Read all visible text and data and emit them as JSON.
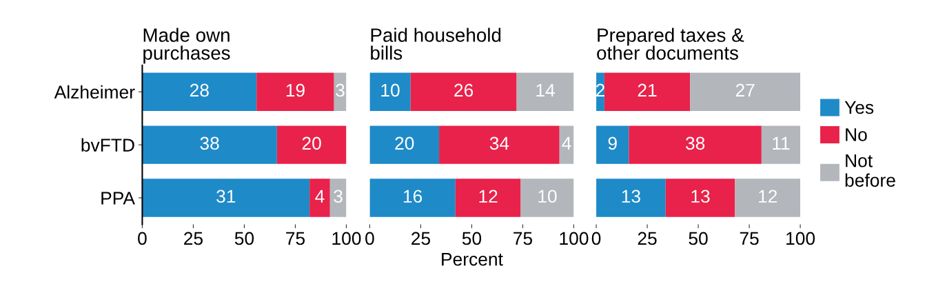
{
  "chart_data": [
    {
      "type": "bar",
      "orientation": "horizontal",
      "stacked": true,
      "title": "Made own\npurchases",
      "categories": [
        "Alzheimer",
        "bvFTD",
        "PPA"
      ],
      "xlim": [
        0,
        100
      ],
      "xticks": [
        0,
        25,
        50,
        75,
        100
      ],
      "series": [
        {
          "color": "#1f8ac8",
          "values": [
            56,
            66,
            82
          ]
        },
        {
          "color": "#e8224a",
          "values": [
            38,
            34,
            10
          ]
        },
        {
          "color": "#b3b6bb",
          "values": [
            6,
            null,
            8
          ]
        }
      ],
      "annotations": [
        "28",
        "19",
        "3",
        "38",
        "20",
        "31",
        "4",
        "3"
      ]
    },
    {
      "type": "bar",
      "orientation": "horizontal",
      "stacked": true,
      "title": "Paid household\nbills",
      "xlabel": "Percent",
      "categories": [
        null,
        null,
        null
      ],
      "xlim": [
        0,
        100
      ],
      "xticks": [
        0,
        25,
        50,
        75,
        100
      ],
      "tick_labels": "x",
      "series": [
        {
          "color": "#1f8ac8",
          "values": [
            20,
            34,
            42
          ]
        },
        {
          "color": "#e8224a",
          "values": [
            52,
            59,
            32
          ]
        },
        {
          "color": "#b3b6bb",
          "values": [
            28,
            7,
            26
          ]
        }
      ],
      "annotations": [
        "10",
        "26",
        "14",
        "20",
        "34",
        "4",
        "16",
        "12",
        "10"
      ]
    },
    {
      "type": "bar",
      "orientation": "horizontal",
      "stacked": true,
      "title": "Prepared taxes &\nother documents",
      "categories": [
        null,
        null,
        null
      ],
      "xlim": [
        0,
        100
      ],
      "xticks": [
        0,
        25,
        50,
        75,
        100
      ],
      "tick_labels": "x",
      "legend": "right",
      "series": [
        {
          "name": "Yes",
          "color": "#1f8ac8",
          "values": [
            4,
            16,
            34
          ]
        },
        {
          "name": "No",
          "color": "#e8224a",
          "values": [
            42,
            65,
            34
          ]
        },
        {
          "name": "Not\nbefore",
          "color": "#b3b6bb",
          "values": [
            54,
            19,
            32
          ]
        }
      ],
      "annotations": [
        "2",
        "21",
        "27",
        "9",
        "38",
        "11",
        "13",
        "13",
        "12"
      ]
    }
  ]
}
